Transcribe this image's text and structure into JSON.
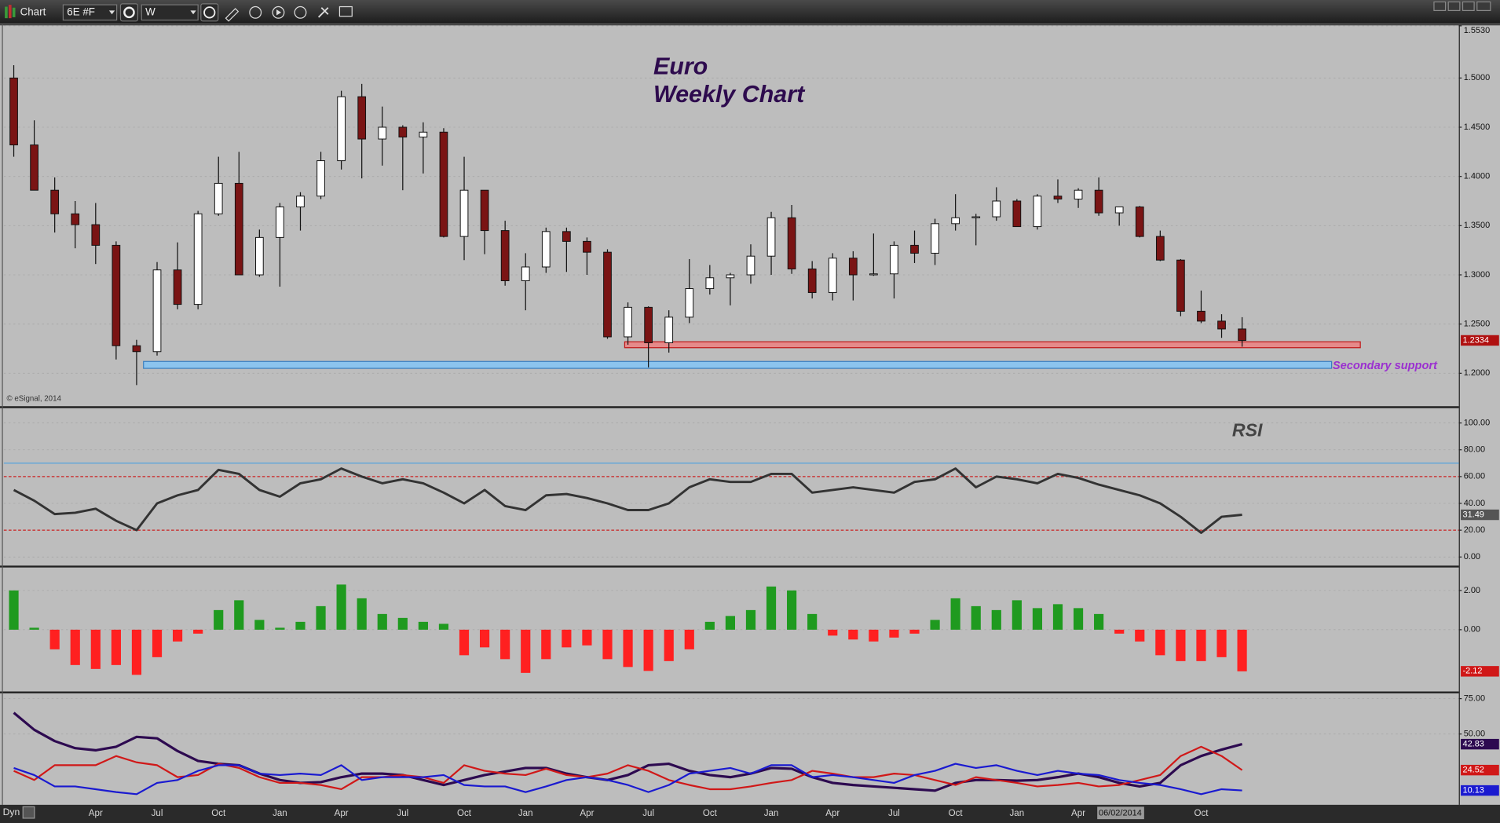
{
  "toolbar": {
    "title": "Chart",
    "symbol": "6E #F",
    "interval": "W"
  },
  "status": {
    "mode": "Dyn",
    "cursor_date": "06/02/2014"
  },
  "chart_data": [
    {
      "type": "candlestick",
      "title": "Euro",
      "subtitle": "Weekly Chart",
      "credit": "© eSignal, 2014",
      "up_color": "#ffffff",
      "down_color": "#7a1414",
      "open": [
        1.5,
        1.432,
        1.386,
        1.362,
        1.351,
        1.33,
        1.228,
        1.222,
        1.305,
        1.27,
        1.362,
        1.393,
        1.3,
        1.338,
        1.369,
        1.38,
        1.416,
        1.481,
        1.438,
        1.45,
        1.44,
        1.445,
        1.339,
        1.386,
        1.345,
        1.294,
        1.308,
        1.344,
        1.334,
        1.323,
        1.237,
        1.267,
        1.231,
        1.257,
        1.286,
        1.297,
        1.3,
        1.319,
        1.358,
        1.306,
        1.282,
        1.317,
        1.3,
        1.301,
        1.33,
        1.322,
        1.352,
        1.358,
        1.359,
        1.375,
        1.349,
        1.38,
        1.377,
        1.386,
        1.363,
        1.369,
        1.339,
        1.315,
        1.263,
        1.253,
        1.245
      ],
      "high": [
        1.513,
        1.457,
        1.399,
        1.375,
        1.373,
        1.334,
        1.234,
        1.313,
        1.333,
        1.365,
        1.42,
        1.425,
        1.346,
        1.373,
        1.384,
        1.425,
        1.487,
        1.494,
        1.471,
        1.452,
        1.455,
        1.449,
        1.42,
        1.386,
        1.355,
        1.322,
        1.348,
        1.348,
        1.338,
        1.326,
        1.272,
        1.268,
        1.264,
        1.316,
        1.31,
        1.302,
        1.331,
        1.364,
        1.371,
        1.314,
        1.322,
        1.324,
        1.342,
        1.334,
        1.345,
        1.357,
        1.382,
        1.362,
        1.389,
        1.377,
        1.382,
        1.397,
        1.388,
        1.399,
        1.369,
        1.37,
        1.345,
        1.316,
        1.284,
        1.26,
        1.257
      ],
      "low": [
        1.42,
        1.386,
        1.343,
        1.327,
        1.311,
        1.214,
        1.188,
        1.218,
        1.265,
        1.265,
        1.36,
        1.3,
        1.298,
        1.288,
        1.345,
        1.377,
        1.407,
        1.398,
        1.411,
        1.386,
        1.403,
        1.338,
        1.315,
        1.321,
        1.289,
        1.264,
        1.302,
        1.303,
        1.3,
        1.235,
        1.229,
        1.206,
        1.221,
        1.251,
        1.28,
        1.269,
        1.291,
        1.3,
        1.301,
        1.276,
        1.274,
        1.274,
        1.299,
        1.276,
        1.312,
        1.31,
        1.345,
        1.33,
        1.355,
        1.349,
        1.346,
        1.373,
        1.368,
        1.36,
        1.35,
        1.338,
        1.314,
        1.258,
        1.251,
        1.236,
        1.227
      ],
      "close": [
        1.432,
        1.386,
        1.362,
        1.351,
        1.33,
        1.228,
        1.222,
        1.305,
        1.27,
        1.362,
        1.393,
        1.3,
        1.338,
        1.369,
        1.38,
        1.416,
        1.481,
        1.438,
        1.45,
        1.44,
        1.445,
        1.339,
        1.386,
        1.345,
        1.294,
        1.308,
        1.344,
        1.334,
        1.323,
        1.237,
        1.267,
        1.231,
        1.257,
        1.286,
        1.297,
        1.3,
        1.319,
        1.358,
        1.306,
        1.282,
        1.317,
        1.3,
        1.301,
        1.33,
        1.322,
        1.352,
        1.358,
        1.359,
        1.375,
        1.349,
        1.38,
        1.377,
        1.386,
        1.363,
        1.369,
        1.339,
        1.315,
        1.263,
        1.253,
        1.245,
        1.2334
      ],
      "bands": [
        {
          "low": 1.226,
          "high": 1.232,
          "color": "#e58a8a",
          "stroke": "#c01818"
        },
        {
          "low": 1.205,
          "high": 1.212,
          "color": "#8cc4ee",
          "stroke": "#3a7fc0",
          "label": "Secondary support",
          "label_color": "#9b30d0"
        }
      ],
      "ylim": [
        1.167,
        1.553
      ],
      "yticks": [
        {
          "value": 1.2,
          "label": "1.2000"
        },
        {
          "value": 1.25,
          "label": "1.2500"
        },
        {
          "value": 1.3,
          "label": "1.3000"
        },
        {
          "value": 1.35,
          "label": "1.3500"
        },
        {
          "value": 1.4,
          "label": "1.4000"
        },
        {
          "value": 1.45,
          "label": "1.4500"
        },
        {
          "value": 1.5,
          "label": "1.5000"
        },
        {
          "value": 1.553,
          "label": "1.5530"
        }
      ],
      "grid": true,
      "badge_color": "#b01010"
    },
    {
      "type": "line",
      "title": "RSI",
      "color": "#333333",
      "values": [
        50,
        42,
        32,
        33,
        36,
        27,
        20,
        40,
        46,
        50,
        65,
        62,
        50,
        45,
        55,
        58,
        66,
        60,
        55,
        58,
        55,
        48,
        40,
        50,
        38,
        35,
        46,
        47,
        44,
        40,
        35,
        35,
        40,
        52,
        58,
        56,
        56,
        62,
        62,
        48,
        50,
        52,
        50,
        48,
        56,
        58,
        66,
        52,
        60,
        58,
        55,
        62,
        59,
        54,
        50,
        46,
        40,
        30,
        18,
        30,
        31.49
      ],
      "hlines": [
        {
          "value": 70,
          "color": "#4aa0e0",
          "dash": false
        },
        {
          "value": 60,
          "color": "#cc2222",
          "dash": true
        },
        {
          "value": 20,
          "color": "#cc2222",
          "dash": true
        }
      ],
      "ylim": [
        -6.4,
        110.7
      ],
      "yticks": [
        {
          "value": 0,
          "label": "0.00"
        },
        {
          "value": 20,
          "label": "20.00"
        },
        {
          "value": 40,
          "label": "40.00"
        },
        {
          "value": 60,
          "label": "60.00"
        },
        {
          "value": 80,
          "label": "80.00"
        },
        {
          "value": 100,
          "label": "100.00"
        }
      ],
      "grid": true,
      "badge_color": "#555555"
    },
    {
      "type": "bar",
      "positive_color": "#1f9a1f",
      "negative_color": "#ff2020",
      "values": [
        2.0,
        0.1,
        -1.0,
        -1.8,
        -2.0,
        -1.8,
        -2.3,
        -1.4,
        -0.6,
        -0.2,
        1.0,
        1.5,
        0.5,
        0.1,
        0.4,
        1.2,
        2.3,
        1.6,
        0.8,
        0.6,
        0.4,
        0.3,
        -1.3,
        -0.9,
        -1.5,
        -2.2,
        -1.5,
        -0.9,
        -0.8,
        -1.5,
        -1.9,
        -2.1,
        -1.6,
        -1.0,
        0.4,
        0.7,
        1.0,
        2.2,
        2.0,
        0.8,
        -0.3,
        -0.5,
        -0.6,
        -0.4,
        -0.2,
        0.5,
        1.6,
        1.2,
        1.0,
        1.5,
        1.1,
        1.3,
        1.1,
        0.8,
        -0.2,
        -0.6,
        -1.3,
        -1.6,
        -1.6,
        -1.4,
        -2.12
      ],
      "ylim": [
        -3.12,
        3.17
      ],
      "yticks": [
        {
          "value": 0,
          "label": "0.00"
        },
        {
          "value": 2,
          "label": "2.00"
        }
      ],
      "grid": true,
      "badge_color": "#d01818"
    },
    {
      "type": "line",
      "categories": [
        null,
        null,
        null,
        null,
        "Apr",
        null,
        null,
        "Jul",
        null,
        null,
        "Oct",
        null,
        null,
        "Jan",
        null,
        null,
        "Apr",
        null,
        null,
        "Jul",
        null,
        null,
        "Oct",
        null,
        null,
        "Jan",
        null,
        null,
        "Apr",
        null,
        null,
        "Jul",
        null,
        null,
        "Oct",
        null,
        null,
        "Jan",
        null,
        null,
        "Apr",
        null,
        null,
        "Jul",
        null,
        null,
        "Oct",
        null,
        null,
        "Jan",
        null,
        null,
        "Apr",
        null,
        null,
        null,
        null,
        null,
        "Oct",
        null,
        null
      ],
      "series": [
        {
          "color": "#2d0a50",
          "values": [
            65,
            53,
            45,
            40,
            38.5,
            41,
            48,
            47,
            38,
            31,
            29,
            28,
            22,
            17.5,
            15.5,
            16,
            19.5,
            22,
            22,
            21,
            17.5,
            14,
            17.5,
            21,
            23.5,
            26,
            26,
            22,
            19.5,
            17.5,
            21,
            28,
            29,
            24,
            21,
            19.5,
            22,
            26,
            25.5,
            19.5,
            15.5,
            14,
            13,
            12,
            11,
            10,
            15.5,
            17.5,
            17.5,
            17,
            17.5,
            19.5,
            22,
            19.5,
            15.5,
            13,
            15.5,
            28,
            34.5,
            39,
            42.83
          ]
        },
        {
          "color": "#d01818",
          "values": [
            24,
            17.5,
            28,
            28,
            28,
            34.5,
            30,
            28,
            19.5,
            21,
            29,
            26,
            19.5,
            15.5,
            15.5,
            14,
            11,
            19.5,
            19.5,
            21,
            19.5,
            15.5,
            28,
            24,
            22,
            21,
            25.5,
            21,
            19.5,
            22,
            28,
            24,
            17.5,
            14,
            11,
            11,
            13,
            15.5,
            17.5,
            24,
            22,
            19.5,
            19.5,
            22,
            21,
            17.5,
            14,
            19.5,
            17.5,
            15.5,
            13,
            14,
            15.5,
            13,
            14,
            17.5,
            21,
            34.5,
            41,
            34.5,
            24.52
          ]
        },
        {
          "color": "#1a1ad0",
          "values": [
            26,
            21,
            13,
            13,
            11,
            9,
            7.5,
            15.5,
            17.5,
            24,
            28,
            28,
            22,
            21,
            22,
            21,
            28,
            17.5,
            19.5,
            19.5,
            19.5,
            21,
            14,
            13,
            13,
            9,
            13,
            17.5,
            19.5,
            17.5,
            14,
            9,
            14,
            22,
            24,
            26,
            22,
            28,
            28,
            19.5,
            21,
            19.5,
            17.5,
            15.5,
            21,
            24,
            29,
            26,
            28,
            24,
            21,
            24,
            22,
            21,
            17.5,
            15.5,
            14,
            11,
            7.5,
            11,
            10.13
          ]
        }
      ],
      "ylim": [
        0,
        78.4
      ],
      "yticks": [
        {
          "value": 50,
          "label": "50.00"
        },
        {
          "value": 75,
          "label": "75.00"
        }
      ],
      "grid": true
    }
  ]
}
